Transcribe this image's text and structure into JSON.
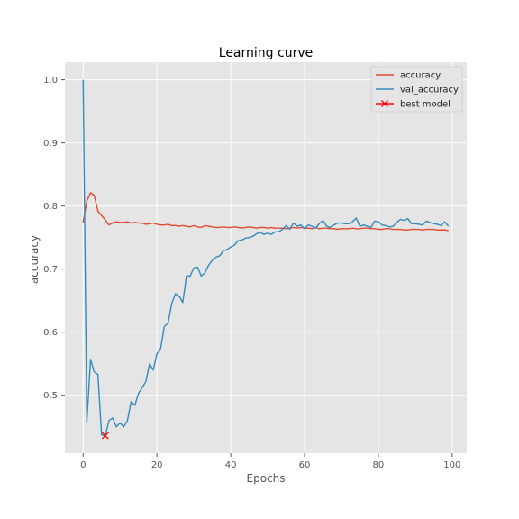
{
  "chart_data": {
    "type": "line",
    "title": "Learning curve",
    "xlabel": "Epochs",
    "ylabel": "accuracy",
    "xlim": [
      -4.95,
      103.95
    ],
    "ylim": [
      0.4082,
      1.028
    ],
    "xticks": [
      0,
      20,
      40,
      60,
      80,
      100
    ],
    "yticks": [
      0.5,
      0.6,
      0.7,
      0.8,
      0.9,
      1.0
    ],
    "ytick_labels": [
      "0.5",
      "0.6",
      "0.7",
      "0.8",
      "0.9",
      "1.0"
    ],
    "grid": true,
    "legend_position": "top-right",
    "colors": {
      "background": "#e5e5e5",
      "grid": "#ffffff",
      "accuracy": "#e24a33",
      "val_accuracy": "#348abd",
      "best_model": "#ff0000"
    },
    "series": [
      {
        "name": "accuracy",
        "x": [
          0,
          1,
          2,
          3,
          4,
          5,
          6,
          7,
          8,
          9,
          10,
          11,
          12,
          13,
          14,
          15,
          16,
          17,
          18,
          19,
          20,
          21,
          22,
          23,
          24,
          25,
          26,
          27,
          28,
          29,
          30,
          31,
          32,
          33,
          34,
          35,
          36,
          37,
          38,
          39,
          40,
          41,
          42,
          43,
          44,
          45,
          46,
          47,
          48,
          49,
          50,
          51,
          52,
          53,
          54,
          55,
          56,
          57,
          58,
          59,
          60,
          61,
          62,
          63,
          64,
          65,
          66,
          67,
          68,
          69,
          70,
          71,
          72,
          73,
          74,
          75,
          76,
          77,
          78,
          79,
          80,
          81,
          82,
          83,
          84,
          85,
          86,
          87,
          88,
          89,
          90,
          91,
          92,
          93,
          94,
          95,
          96,
          97,
          98,
          99
        ],
        "y": [
          0.774,
          0.808,
          0.821,
          0.817,
          0.792,
          0.785,
          0.778,
          0.77,
          0.773,
          0.775,
          0.774,
          0.774,
          0.775,
          0.773,
          0.774,
          0.773,
          0.773,
          0.771,
          0.772,
          0.773,
          0.771,
          0.77,
          0.77,
          0.771,
          0.769,
          0.769,
          0.768,
          0.769,
          0.768,
          0.767,
          0.769,
          0.767,
          0.766,
          0.769,
          0.768,
          0.767,
          0.766,
          0.766,
          0.767,
          0.766,
          0.766,
          0.767,
          0.766,
          0.765,
          0.766,
          0.767,
          0.766,
          0.765,
          0.766,
          0.766,
          0.765,
          0.766,
          0.765,
          0.765,
          0.765,
          0.764,
          0.765,
          0.766,
          0.765,
          0.766,
          0.765,
          0.765,
          0.764,
          0.766,
          0.764,
          0.765,
          0.765,
          0.764,
          0.764,
          0.763,
          0.764,
          0.764,
          0.764,
          0.765,
          0.764,
          0.764,
          0.765,
          0.765,
          0.764,
          0.764,
          0.763,
          0.763,
          0.764,
          0.764,
          0.763,
          0.763,
          0.763,
          0.762,
          0.762,
          0.763,
          0.763,
          0.763,
          0.762,
          0.763,
          0.763,
          0.763,
          0.762,
          0.762,
          0.762,
          0.761
        ]
      },
      {
        "name": "val_accuracy",
        "x": [
          0,
          1,
          2,
          3,
          4,
          5,
          6,
          7,
          8,
          9,
          10,
          11,
          12,
          13,
          14,
          15,
          16,
          17,
          18,
          19,
          20,
          21,
          22,
          23,
          24,
          25,
          26,
          27,
          28,
          29,
          30,
          31,
          32,
          33,
          34,
          35,
          36,
          37,
          38,
          39,
          40,
          41,
          42,
          43,
          44,
          45,
          46,
          47,
          48,
          49,
          50,
          51,
          52,
          53,
          54,
          55,
          56,
          57,
          58,
          59,
          60,
          61,
          62,
          63,
          64,
          65,
          66,
          67,
          68,
          69,
          70,
          71,
          72,
          73,
          74,
          75,
          76,
          77,
          78,
          79,
          80,
          81,
          82,
          83,
          84,
          85,
          86,
          87,
          88,
          89,
          90,
          91,
          92,
          93,
          94,
          95,
          96,
          97,
          98,
          99
        ],
        "y": [
          1.0,
          0.457,
          0.557,
          0.537,
          0.533,
          0.437,
          0.436,
          0.46,
          0.464,
          0.45,
          0.456,
          0.45,
          0.46,
          0.49,
          0.484,
          0.503,
          0.512,
          0.522,
          0.55,
          0.54,
          0.566,
          0.574,
          0.609,
          0.614,
          0.645,
          0.661,
          0.657,
          0.647,
          0.689,
          0.689,
          0.702,
          0.703,
          0.689,
          0.694,
          0.706,
          0.714,
          0.719,
          0.721,
          0.729,
          0.731,
          0.735,
          0.738,
          0.745,
          0.746,
          0.749,
          0.75,
          0.752,
          0.756,
          0.758,
          0.755,
          0.757,
          0.755,
          0.759,
          0.759,
          0.763,
          0.769,
          0.763,
          0.773,
          0.768,
          0.77,
          0.764,
          0.77,
          0.768,
          0.765,
          0.772,
          0.777,
          0.768,
          0.766,
          0.77,
          0.773,
          0.773,
          0.772,
          0.772,
          0.775,
          0.781,
          0.768,
          0.77,
          0.768,
          0.766,
          0.776,
          0.775,
          0.77,
          0.769,
          0.767,
          0.768,
          0.774,
          0.779,
          0.777,
          0.78,
          0.772,
          0.772,
          0.771,
          0.77,
          0.776,
          0.774,
          0.772,
          0.771,
          0.769,
          0.775,
          0.768
        ]
      },
      {
        "name": "best model",
        "type": "marker",
        "marker": "x",
        "x": [
          6
        ],
        "y": [
          0.436
        ]
      }
    ]
  }
}
